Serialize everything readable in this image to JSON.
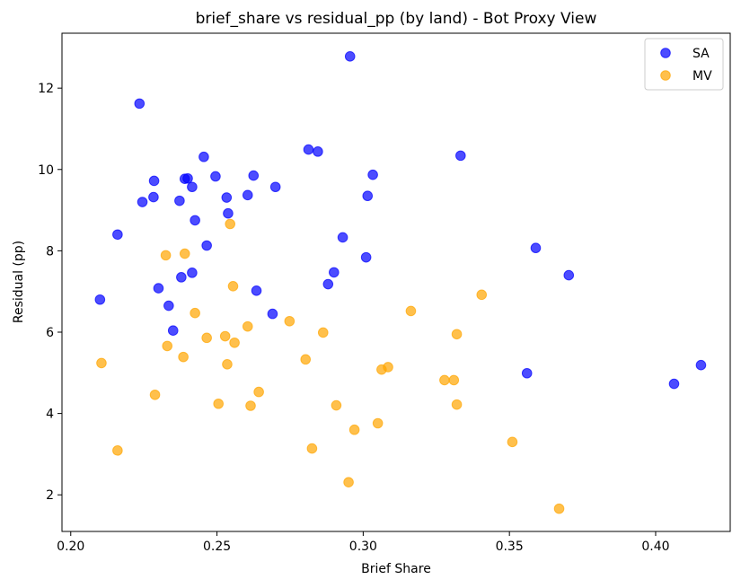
{
  "chart_data": {
    "type": "scatter",
    "title": "brief_share vs residual_pp (by land) - Bot Proxy View",
    "xlabel": "Brief Share",
    "ylabel": "Residual (pp)",
    "xlim": [
      0.197,
      0.4255
    ],
    "ylim": [
      1.1,
      13.35
    ],
    "xticks": [
      0.2,
      0.25,
      0.3,
      0.35,
      0.4
    ],
    "xtick_labels": [
      "0.20",
      "0.25",
      "0.30",
      "0.35",
      "0.40"
    ],
    "yticks": [
      2,
      4,
      6,
      8,
      10,
      12
    ],
    "ytick_labels": [
      "2",
      "4",
      "6",
      "8",
      "10",
      "12"
    ],
    "grid": false,
    "legend_position": "top-right",
    "series": [
      {
        "name": "SA",
        "color": "#0000ff",
        "points": [
          [
            0.21,
            6.8
          ],
          [
            0.216,
            8.4
          ],
          [
            0.2235,
            11.62
          ],
          [
            0.2245,
            9.2
          ],
          [
            0.2283,
            9.32
          ],
          [
            0.2285,
            9.72
          ],
          [
            0.23,
            7.08
          ],
          [
            0.2335,
            6.65
          ],
          [
            0.235,
            6.04
          ],
          [
            0.2372,
            9.23
          ],
          [
            0.2378,
            7.35
          ],
          [
            0.239,
            9.77
          ],
          [
            0.24,
            9.78
          ],
          [
            0.2415,
            9.57
          ],
          [
            0.2415,
            7.46
          ],
          [
            0.2425,
            8.75
          ],
          [
            0.2455,
            10.31
          ],
          [
            0.2465,
            8.13
          ],
          [
            0.2495,
            9.83
          ],
          [
            0.2533,
            9.31
          ],
          [
            0.2538,
            8.92
          ],
          [
            0.2605,
            9.37
          ],
          [
            0.2625,
            9.85
          ],
          [
            0.2635,
            7.02
          ],
          [
            0.269,
            6.45
          ],
          [
            0.27,
            9.57
          ],
          [
            0.2813,
            10.49
          ],
          [
            0.2845,
            10.44
          ],
          [
            0.288,
            7.18
          ],
          [
            0.29,
            7.47
          ],
          [
            0.293,
            8.33
          ],
          [
            0.2955,
            12.78
          ],
          [
            0.301,
            7.84
          ],
          [
            0.3015,
            9.35
          ],
          [
            0.3033,
            9.87
          ],
          [
            0.3333,
            10.34
          ],
          [
            0.356,
            4.99
          ],
          [
            0.359,
            8.07
          ],
          [
            0.3703,
            7.4
          ],
          [
            0.4063,
            4.73
          ],
          [
            0.4155,
            5.19
          ]
        ]
      },
      {
        "name": "MV",
        "color": "#ffa500",
        "points": [
          [
            0.2105,
            5.24
          ],
          [
            0.216,
            3.09
          ],
          [
            0.2288,
            4.46
          ],
          [
            0.2325,
            7.89
          ],
          [
            0.233,
            5.66
          ],
          [
            0.2385,
            5.39
          ],
          [
            0.239,
            7.93
          ],
          [
            0.2425,
            6.47
          ],
          [
            0.2465,
            5.86
          ],
          [
            0.2505,
            4.24
          ],
          [
            0.2528,
            5.9
          ],
          [
            0.2535,
            5.21
          ],
          [
            0.2545,
            8.66
          ],
          [
            0.2555,
            7.13
          ],
          [
            0.256,
            5.74
          ],
          [
            0.2605,
            6.14
          ],
          [
            0.2615,
            4.19
          ],
          [
            0.2643,
            4.53
          ],
          [
            0.2748,
            6.27
          ],
          [
            0.2803,
            5.33
          ],
          [
            0.2825,
            3.14
          ],
          [
            0.2863,
            5.99
          ],
          [
            0.2908,
            4.2
          ],
          [
            0.295,
            2.31
          ],
          [
            0.297,
            3.6
          ],
          [
            0.305,
            3.76
          ],
          [
            0.3063,
            5.08
          ],
          [
            0.3085,
            5.14
          ],
          [
            0.3163,
            6.52
          ],
          [
            0.3278,
            4.82
          ],
          [
            0.331,
            4.82
          ],
          [
            0.332,
            5.95
          ],
          [
            0.332,
            4.22
          ],
          [
            0.3405,
            6.92
          ],
          [
            0.351,
            3.3
          ],
          [
            0.367,
            1.66
          ]
        ]
      }
    ]
  }
}
